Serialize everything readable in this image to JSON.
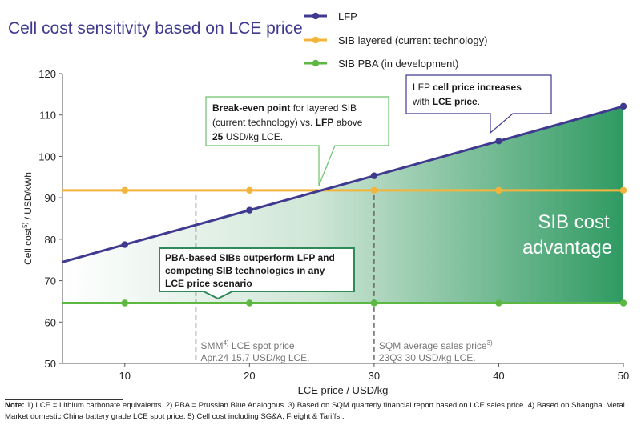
{
  "chart_data": {
    "type": "line",
    "title": "Cell cost sensitivity based on LCE price",
    "xlabel": "LCE price / USD/kg",
    "ylabel_main": "Cell cost",
    "ylabel_sup": "5)",
    "ylabel_unit": " / USD/kWh",
    "xlim": [
      5,
      50
    ],
    "ylim": [
      50,
      120
    ],
    "x_ticks": [
      10,
      20,
      30,
      40,
      50
    ],
    "y_ticks": [
      50,
      60,
      70,
      80,
      90,
      100,
      110,
      120
    ],
    "x": [
      5,
      10,
      20,
      30,
      40,
      50
    ],
    "series": [
      {
        "name": "LFP",
        "color": "#3f3a8f",
        "values": [
          74.5,
          78.7,
          87.0,
          95.3,
          103.7,
          112.1
        ]
      },
      {
        "name": "SIB layered (current technology)",
        "color": "#f3b43c",
        "values": [
          91.8,
          91.8,
          91.8,
          91.8,
          91.8,
          91.8
        ]
      },
      {
        "name": "SIB PBA (in development)",
        "color": "#5cb840",
        "values": [
          64.6,
          64.6,
          64.6,
          64.6,
          64.6,
          64.6
        ]
      }
    ],
    "vlines": [
      {
        "x": 15.7,
        "label_line1_pre": "SMM",
        "label_sup": "4)",
        "label_line1_post": " LCE spot price",
        "label_line2": "Apr.24 15.7 USD/kg LCE."
      },
      {
        "x": 30,
        "label_line1_pre": "SQM average sales price",
        "label_sup": "3)",
        "label_line1_post": "",
        "label_line2": "23Q3 30 USD/kg LCE."
      }
    ],
    "region_label": [
      "SIB cost",
      "advantage"
    ],
    "callouts": {
      "breakeven": {
        "lines": [
          [
            {
              "t": "Break-even point",
              "b": true
            },
            {
              "t": " for layered SIB",
              "b": false
            }
          ],
          [
            {
              "t": "(current technology) vs. ",
              "b": false
            },
            {
              "t": "LFP",
              "b": true
            },
            {
              "t": " above",
              "b": false
            }
          ],
          [
            {
              "t": "25",
              "b": true
            },
            {
              "t": " USD/kg LCE.",
              "b": false
            }
          ]
        ]
      },
      "lfp": {
        "lines": [
          [
            {
              "t": "LFP ",
              "b": false
            },
            {
              "t": "cell price increases",
              "b": true
            }
          ],
          [
            {
              "t": "with ",
              "b": false
            },
            {
              "t": "LCE price",
              "b": true
            },
            {
              "t": ".",
              "b": false
            }
          ]
        ]
      },
      "pba": {
        "lines": [
          [
            {
              "t": "PBA-based SIBs outperform LFP and",
              "b": true
            }
          ],
          [
            {
              "t": "competing SIB technologies in any",
              "b": true
            }
          ],
          [
            {
              "t": "LCE price scenario",
              "b": true
            }
          ]
        ]
      }
    }
  },
  "notes": {
    "label": "Note:",
    "text": " 1) LCE = Lithium carbonate equivalents. 2) PBA = Prussian Blue Analogous. 3) Based on SQM quarterly financial report based on LCE sales price. 4) Based on Shanghai Metal Market domestic China battery grade LCE spot price. 5) Cell cost including SG&A, Freight & Tariffs ."
  }
}
